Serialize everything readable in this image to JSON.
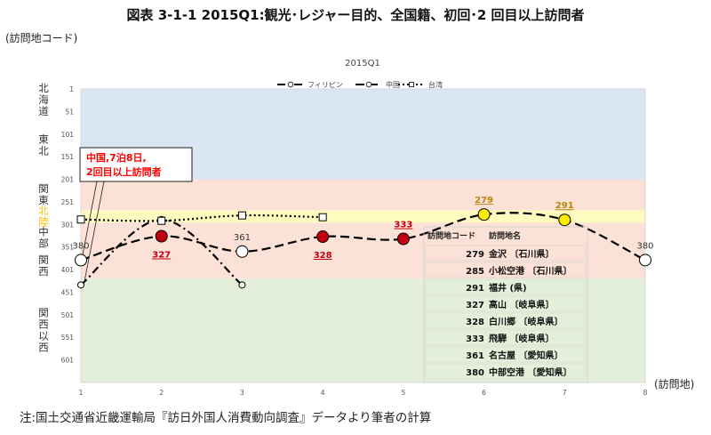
{
  "figure_title": "図表 3-1-1 2015Q1:観光･レジャー目的、全国籍、初回･2 回目以上訪問者",
  "note": "注:国土交通省近畿運輸局『訪日外国人消費動向調査』データより筆者の計算",
  "callout": {
    "line1": "中国,7泊8日,",
    "line2": "2回目以上訪問者"
  },
  "colors": {
    "band_hokkaido_tohoku": "#dae6f3",
    "band_kanto": "#fbe1d6",
    "band_hokuriku": "#fefbbf",
    "band_chubu": "#fbe1d6",
    "band_kansai_west": "#e3efd9",
    "marker_red": "#c0000f",
    "marker_yellow": "#ffee00",
    "region_hokuriku_text": "#ffc000",
    "callout_text": "#ff0000"
  },
  "chart_data": {
    "type": "line",
    "title": "2015Q1",
    "xlabel": "(訪問地)",
    "ylabel": "(訪問地コード)",
    "x": [
      1,
      2,
      3,
      4,
      5,
      6,
      7,
      8
    ],
    "xlim": [
      1,
      8
    ],
    "ylim": [
      651,
      1
    ],
    "y_reversed": true,
    "y_ticks": [
      1,
      51,
      101,
      151,
      201,
      251,
      301,
      351,
      401,
      451,
      501,
      551,
      601
    ],
    "x_ticks": [
      1,
      2,
      3,
      4,
      5,
      6,
      7,
      8
    ],
    "legend_position": "top-center",
    "series": [
      {
        "name": "フィリピン",
        "style": "dash-dot",
        "marker": "circle-open",
        "points": [
          [
            1,
            435
          ],
          [
            2,
            290
          ],
          [
            3,
            435
          ]
        ]
      },
      {
        "name": "中国",
        "style": "dashed",
        "marker": "circle",
        "points": [
          [
            1,
            380
          ],
          [
            2,
            327
          ],
          [
            3,
            361
          ],
          [
            4,
            328
          ],
          [
            5,
            333
          ],
          [
            6,
            279
          ],
          [
            7,
            291
          ],
          [
            8,
            380
          ]
        ]
      },
      {
        "name": "台湾",
        "style": "dotted",
        "marker": "square-open",
        "points": [
          [
            1,
            290
          ],
          [
            2,
            293
          ],
          [
            3,
            281
          ],
          [
            4,
            285
          ]
        ]
      }
    ],
    "point_labels": [
      {
        "x": 1,
        "y": 380,
        "text": "380",
        "emphasis": "none"
      },
      {
        "x": 2,
        "y": 327,
        "text": "327",
        "emphasis": "red-underline"
      },
      {
        "x": 3,
        "y": 361,
        "text": "361",
        "emphasis": "none"
      },
      {
        "x": 4,
        "y": 328,
        "text": "328",
        "emphasis": "red-underline"
      },
      {
        "x": 5,
        "y": 333,
        "text": "333",
        "emphasis": "red-underline"
      },
      {
        "x": 6,
        "y": 279,
        "text": "279",
        "emphasis": "gold-underline"
      },
      {
        "x": 7,
        "y": 291,
        "text": "291",
        "emphasis": "gold-underline"
      },
      {
        "x": 8,
        "y": 380,
        "text": "380",
        "emphasis": "none"
      }
    ],
    "region_bands": [
      {
        "label": "北海道",
        "from": 1,
        "to": 51,
        "color_key": "band_hokkaido_tohoku"
      },
      {
        "label": "東北",
        "from": 51,
        "to": 201,
        "color_key": "band_hokkaido_tohoku"
      },
      {
        "label": "関東",
        "from": 201,
        "to": 270,
        "color_key": "band_kanto"
      },
      {
        "label": "北陸",
        "from": 270,
        "to": 297,
        "color_key": "band_hokuriku"
      },
      {
        "label": "中部",
        "from": 297,
        "to": 365,
        "color_key": "band_chubu"
      },
      {
        "label": "関西",
        "from": 365,
        "to": 421,
        "color_key": "band_chubu"
      },
      {
        "label": "関西以西",
        "from": 421,
        "to": 651,
        "color_key": "band_kansai_west"
      }
    ],
    "code_table": {
      "header": [
        "訪問地コード",
        "訪問地名"
      ],
      "rows": [
        [
          "279",
          "金沢 〔石川県〕"
        ],
        [
          "285",
          "小松空港 〔石川県〕"
        ],
        [
          "291",
          "福井 (県)"
        ],
        [
          "327",
          "高山 〔岐阜県〕"
        ],
        [
          "328",
          "白川郷 〔岐阜県〕"
        ],
        [
          "333",
          "飛騨 〔岐阜県〕"
        ],
        [
          "361",
          "名古屋 〔愛知県〕"
        ],
        [
          "380",
          "中部空港 〔愛知県〕"
        ]
      ]
    }
  }
}
